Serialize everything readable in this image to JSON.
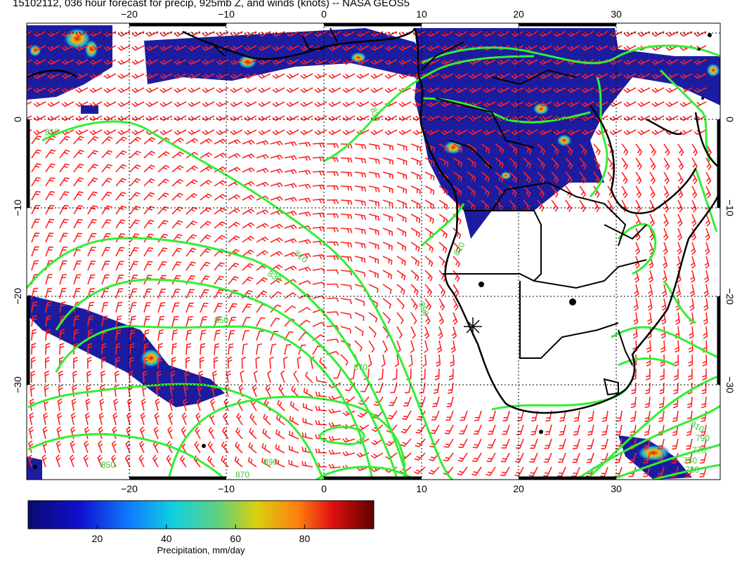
{
  "title": "15102112, 036 hour forecast for precip, 925mb Z, and winds (knots) -- NASA GEOS5",
  "map": {
    "lon_range": [
      -30,
      40
    ],
    "lat_range": [
      -40,
      10
    ],
    "lon_ticks": [
      "−20",
      "−10",
      "0",
      "10",
      "20",
      "30"
    ],
    "lon_tick_values": [
      -20,
      -10,
      0,
      10,
      20,
      30
    ],
    "lat_ticks_left": [
      "0",
      "−10",
      "−20",
      "−30"
    ],
    "lat_ticks_right": [
      "0",
      "−10",
      "−20",
      "−30"
    ],
    "lat_tick_values": [
      0,
      -10,
      -20,
      -30
    ],
    "contour_labels": [
      "810",
      "830",
      "850",
      "870",
      "890",
      "810",
      "830",
      "850",
      "870",
      "890",
      "790",
      "770",
      "750",
      "730",
      "810",
      "810"
    ],
    "colors": {
      "land": "#000000",
      "contour": "#33ee33",
      "barb": "#ff2222",
      "precip_base": "#1a1a99"
    }
  },
  "colorbar": {
    "ticks": [
      "20",
      "40",
      "60",
      "80"
    ],
    "tick_values": [
      20,
      40,
      60,
      80
    ],
    "range": [
      0,
      100
    ],
    "label": "Precipitation, mm/day"
  }
}
